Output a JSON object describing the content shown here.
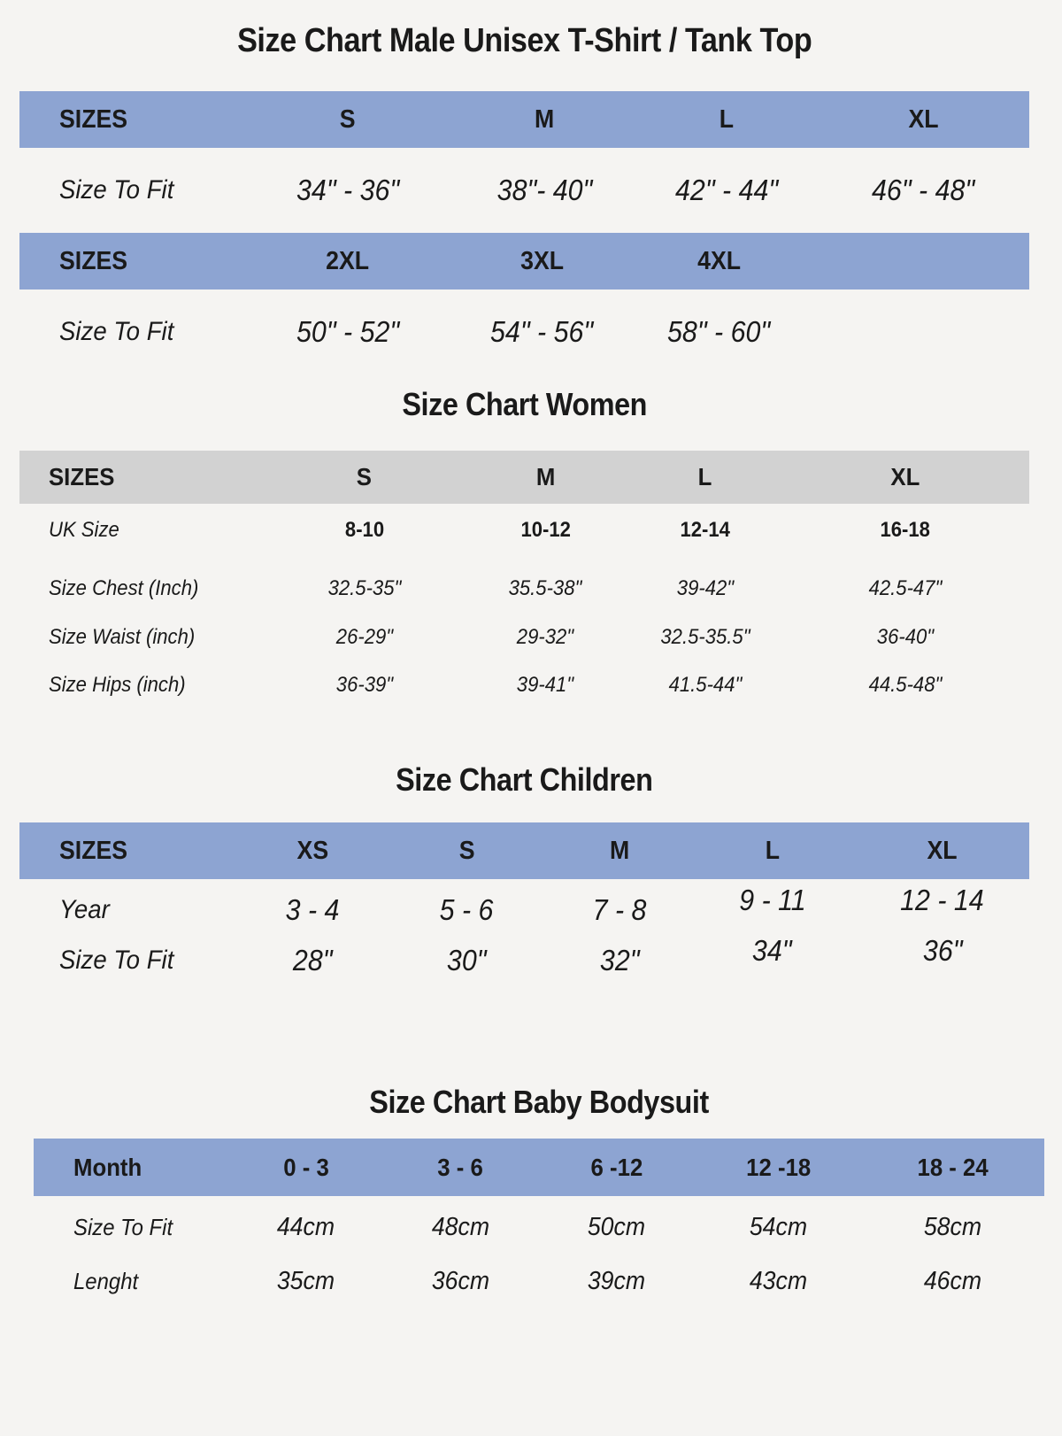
{
  "page": {
    "background": "#f5f4f2",
    "text_color": "#1a1a1a",
    "header_blue": "#8da4d2",
    "header_gray": "#d2d2d2"
  },
  "sections": [
    {
      "id": "male-unisex",
      "title": "Size Chart Male Unisex T-Shirt / Tank Top",
      "tables": [
        {
          "columns": [
            "22%",
            "21%",
            "18%",
            "18%",
            "21%"
          ],
          "header": {
            "theme": "blue",
            "cells": [
              "SIZES",
              "S",
              "M",
              "L",
              "XL"
            ]
          },
          "rows": [
            {
              "label": "Size To Fit",
              "style": "italic",
              "cells": [
                "34\" - 36\"",
                "38\"- 40\"",
                "42\" - 44\"",
                "46\" - 48\""
              ]
            }
          ]
        },
        {
          "columns": [
            "22%",
            "21%",
            "17.5%",
            "17.5%",
            "22%"
          ],
          "header": {
            "theme": "blue",
            "cells": [
              "SIZES",
              "2XL",
              "3XL",
              "4XL",
              ""
            ]
          },
          "rows": [
            {
              "label": "Size To Fit",
              "style": "italic",
              "cells": [
                "50\" - 52\"",
                "54\" - 56\"",
                "58\" - 60\"",
                ""
              ]
            }
          ]
        }
      ]
    },
    {
      "id": "women",
      "title": "Size Chart Women",
      "tables": [
        {
          "columns": [
            "24.5%",
            "19.3%",
            "16.6%",
            "15%",
            "24.6%"
          ],
          "header": {
            "theme": "gray",
            "cells": [
              "SIZES",
              "S",
              "M",
              "L",
              "XL"
            ]
          },
          "rows": [
            {
              "label": "UK Size",
              "style": "bold",
              "cells": [
                "8-10",
                "10-12",
                "12-14",
                "16-18"
              ]
            },
            {
              "label": "Size Chest (Inch)",
              "style": "italic",
              "cells": [
                "32.5-35\"",
                "35.5-38\"",
                "39-42\"",
                "42.5-47\""
              ]
            },
            {
              "label": "Size Waist (inch)",
              "style": "italic",
              "cells": [
                "26-29\"",
                "29-32\"",
                "32.5-35.5\"",
                "36-40\""
              ]
            },
            {
              "label": "Size Hips (inch)",
              "style": "italic",
              "cells": [
                "36-39\"",
                "39-41\"",
                "41.5-44\"",
                "44.5-48\""
              ]
            }
          ]
        }
      ]
    },
    {
      "id": "children",
      "title": "Size Chart Children",
      "tables": [
        {
          "columns": [
            "22%",
            "14%",
            "16.6%",
            "13.7%",
            "16.5%",
            "17.2%"
          ],
          "header": {
            "theme": "blue",
            "cells": [
              "SIZES",
              "XS",
              "S",
              "M",
              "L",
              "XL"
            ]
          },
          "rows": [
            {
              "label": "Year",
              "style": "italic",
              "cells": [
                "3 - 4",
                "5 - 6",
                "7 - 8",
                "9 - 11",
                "12 - 14"
              ]
            },
            {
              "label": "Size To Fit",
              "style": "italic",
              "cells": [
                "28\"",
                "30\"",
                "32\"",
                "34\"",
                "36\""
              ]
            }
          ]
        }
      ]
    },
    {
      "id": "baby",
      "title": "Size Chart Baby Bodysuit",
      "tables": [
        {
          "columns": [
            "19.3%",
            "15.3%",
            "15.3%",
            "15.6%",
            "16.4%",
            "18.1%"
          ],
          "header": {
            "theme": "blue",
            "cells": [
              "Month",
              "0 - 3",
              "3 - 6",
              "6 -12",
              "12 -18",
              "18 - 24"
            ]
          },
          "rows": [
            {
              "label": "Size To Fit",
              "style": "italic",
              "cells": [
                "44cm",
                "48cm",
                "50cm",
                "54cm",
                "58cm"
              ]
            },
            {
              "label": "Lenght",
              "style": "italic",
              "cells": [
                "35cm",
                "36cm",
                "39cm",
                "43cm",
                "46cm"
              ]
            }
          ]
        }
      ]
    }
  ]
}
